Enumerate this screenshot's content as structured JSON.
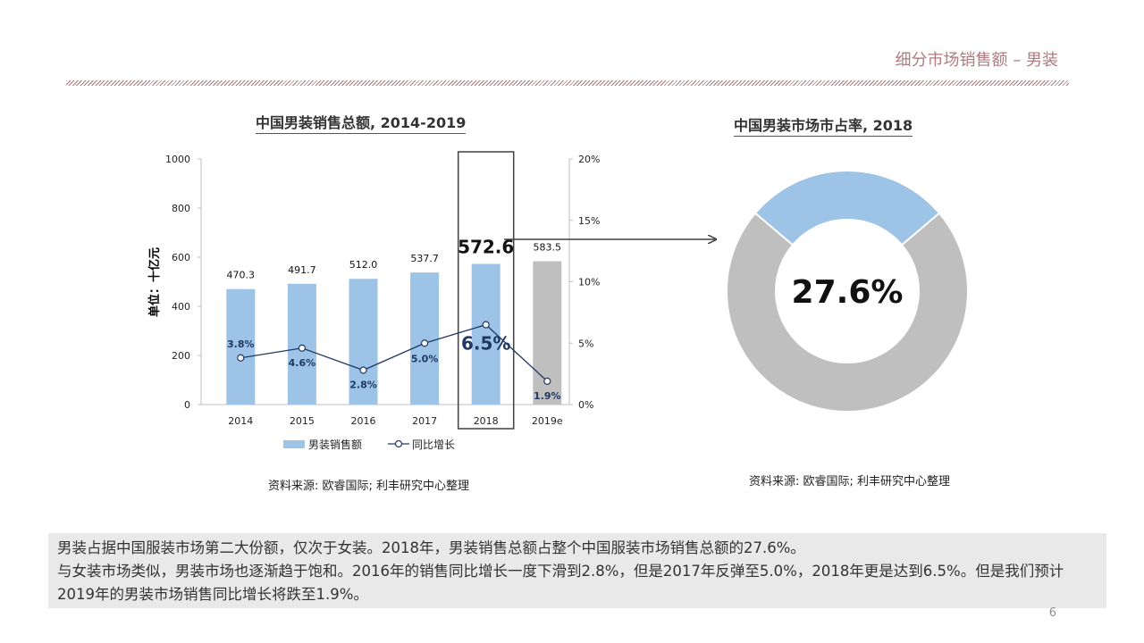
{
  "header": {
    "title": "细分市场销售额 – 男装"
  },
  "bar_chart": {
    "title": "中国男装销售总额, 2014-2019",
    "y_axis_label": "单位：十亿元",
    "source": "资料来源: 欧睿国际; 利丰研究中心整理",
    "bar_labels": [
      "470.3",
      "491.7",
      "512.0",
      "537.7",
      "572.6",
      "583.5"
    ],
    "growth_labels": [
      "3.8%",
      "4.6%",
      "2.8%",
      "5.0%",
      "6.5%",
      "1.9%"
    ],
    "left_ticks": [
      "0",
      "200",
      "400",
      "600",
      "800",
      "1000"
    ],
    "right_ticks": [
      "0%",
      "5%",
      "10%",
      "15%",
      "20%"
    ],
    "legend": {
      "bar": "男装销售额",
      "line": "同比增长"
    }
  },
  "donut_chart": {
    "title": "中国男装市场市占率, 2018",
    "center_label": "27.6%",
    "source": "资料来源: 欧睿国际; 利丰研究中心整理"
  },
  "summary": {
    "line1": "男装占据中国服装市场第二大份额，仅次于女装。2018年，男装销售总额占整个中国服装市场销售总额的27.6%。",
    "line2": "与女装市场类似，男装市场也逐渐趋于饱和。2016年的销售同比增长一度下滑到2.8%，但是2017年反弹至5.0%，2018年更是达到6.5%。但是我们预计2019年的男装市场销售同比增长将跌至1.9%。"
  },
  "page_number": "6",
  "colors": {
    "bar": "#9dc3e6",
    "bar_forecast": "#bfbfbf",
    "line": "#203864",
    "donut_share": "#9dc3e6",
    "donut_rest": "#bfbfbf",
    "header": "#b07a7f"
  },
  "chart_data": [
    {
      "type": "bar",
      "title": "中国男装销售总额, 2014-2019",
      "categories": [
        "2014",
        "2015",
        "2016",
        "2017",
        "2018",
        "2019e"
      ],
      "ylabel": "单位：十亿元",
      "ylim": [
        0,
        1000
      ],
      "y2lim": [
        0,
        0.2
      ],
      "series": [
        {
          "name": "男装销售额",
          "type": "bar",
          "axis": "left",
          "values": [
            470.3,
            491.7,
            512.0,
            537.7,
            572.6,
            583.5
          ]
        },
        {
          "name": "同比增长",
          "type": "line",
          "axis": "right",
          "values": [
            0.038,
            0.046,
            0.028,
            0.05,
            0.065,
            0.019
          ]
        }
      ],
      "highlight": "2018",
      "forecast": "2019e",
      "legend": "bottom",
      "grid": false
    },
    {
      "type": "pie",
      "donut": true,
      "title": "中国男装市场市占率, 2018",
      "values": [
        0.276,
        0.724
      ],
      "center_label": "27.6%"
    }
  ]
}
